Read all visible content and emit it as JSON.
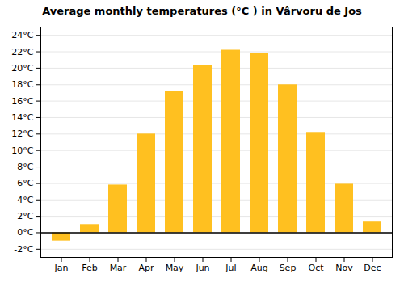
{
  "chart_data": {
    "type": "bar",
    "title": "Average monthly temperatures (°C ) in Vârvoru de Jos",
    "categories": [
      "Jan",
      "Feb",
      "Mar",
      "Apr",
      "May",
      "Jun",
      "Jul",
      "Aug",
      "Sep",
      "Oct",
      "Nov",
      "Dec"
    ],
    "values": [
      -1.0,
      1.0,
      5.8,
      12.0,
      17.2,
      20.3,
      22.2,
      21.8,
      18.0,
      12.2,
      6.0,
      1.4
    ],
    "color": "#FFC020",
    "ylim": [
      -3,
      25
    ],
    "yticks": [
      {
        "value": -2,
        "label": "-2°C"
      },
      {
        "value": 0,
        "label": "0°C"
      },
      {
        "value": 2,
        "label": "2°C"
      },
      {
        "value": 4,
        "label": "4°C"
      },
      {
        "value": 6,
        "label": "6°C"
      },
      {
        "value": 8,
        "label": "8°C"
      },
      {
        "value": 10,
        "label": "10°C"
      },
      {
        "value": 12,
        "label": "12°C"
      },
      {
        "value": 14,
        "label": "14°C"
      },
      {
        "value": 16,
        "label": "16°C"
      },
      {
        "value": 18,
        "label": "18°C"
      },
      {
        "value": 20,
        "label": "20°C"
      },
      {
        "value": 22,
        "label": "22°C"
      },
      {
        "value": 24,
        "label": "24°C"
      }
    ],
    "grid": true
  }
}
